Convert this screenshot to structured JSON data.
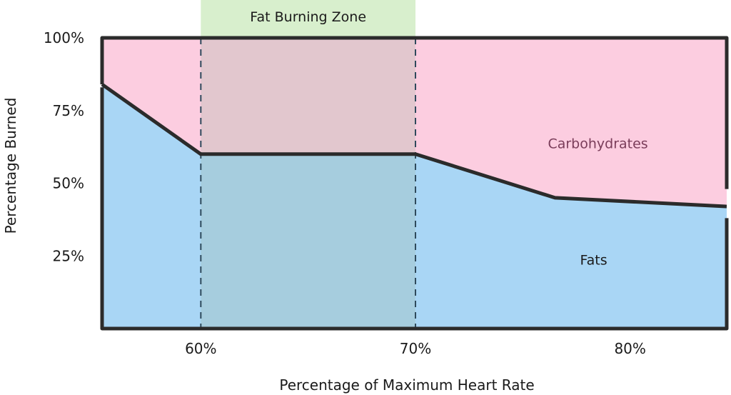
{
  "chart_data": {
    "type": "area",
    "xlabel": "Percentage of Maximum Heart Rate",
    "ylabel": "Percentage  Burned",
    "xlim": [
      55.4,
      84.5
    ],
    "ylim": [
      0,
      100
    ],
    "x_ticks": [
      {
        "value": 60,
        "label": "60%"
      },
      {
        "value": 70,
        "label": "70%"
      },
      {
        "value": 80,
        "label": "80%"
      }
    ],
    "y_ticks": [
      {
        "value": 25,
        "label": "25%"
      },
      {
        "value": 50,
        "label": "50%"
      },
      {
        "value": 75,
        "label": "75%"
      },
      {
        "value": 100,
        "label": "100%"
      }
    ],
    "series": [
      {
        "name": "Fats",
        "x": [
          55.4,
          60,
          70,
          76.5,
          84.5
        ],
        "values": [
          84,
          60,
          60,
          45,
          42
        ]
      },
      {
        "name": "Carbohydrates",
        "x": [
          55.4,
          60,
          70,
          76.5,
          84.5
        ],
        "values": [
          16,
          40,
          40,
          55,
          58
        ]
      }
    ],
    "area_labels": [
      {
        "series": "Carbohydrates",
        "text": "Carbohydrates",
        "x": 78.5,
        "y": 62
      },
      {
        "series": "Fats",
        "text": "Fats",
        "x": 78.3,
        "y": 22
      }
    ],
    "zone": {
      "label": "Fat Burning Zone",
      "x_start": 60,
      "x_end": 70
    },
    "colors": {
      "fats": "#a9d6f5",
      "carbohydrates": "#fccde0",
      "zone_header": "#d8efcd",
      "zone_overlay": "#9db8a0",
      "divider": "#2f4a5c",
      "outline": "#2b2b2b",
      "carb_label": "#7a3d5a",
      "fat_label": "#1a1a1a"
    }
  }
}
